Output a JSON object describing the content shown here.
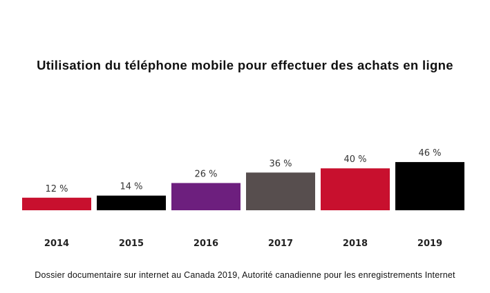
{
  "chart_data": {
    "type": "bar",
    "title": "Utilisation du téléphone mobile pour effectuer des achats en ligne",
    "categories": [
      "2014",
      "2015",
      "2016",
      "2017",
      "2018",
      "2019"
    ],
    "values": [
      12,
      14,
      26,
      36,
      40,
      46
    ],
    "value_labels": [
      "12 %",
      "14 %",
      "26 %",
      "36 %",
      "40 %",
      "46 %"
    ],
    "colors": [
      "#c8102e",
      "#000000",
      "#6d1f7e",
      "#574e4e",
      "#c8102e",
      "#000000"
    ],
    "unit": "%",
    "grid": false,
    "legend": "none",
    "source": "Dossier documentaire sur internet au Canada 2019, Autorité canadienne pour les enregistrements Internet"
  }
}
